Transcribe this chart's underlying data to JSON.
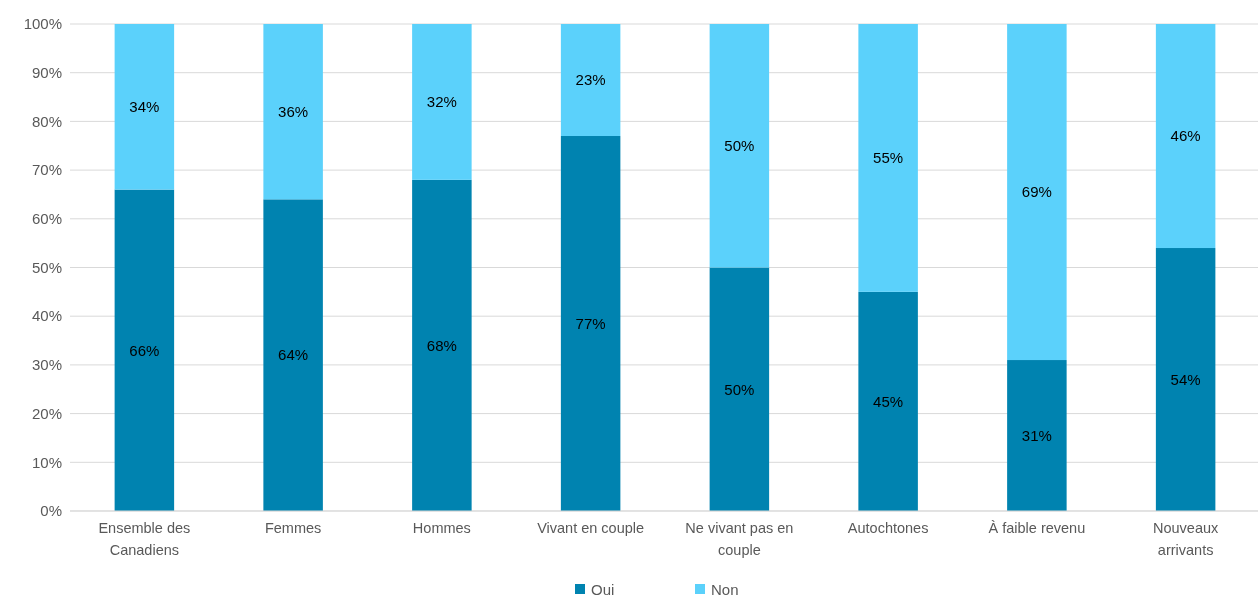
{
  "chart_data": {
    "type": "bar",
    "stacked": true,
    "categories": [
      "Ensemble des Canadiens",
      "Femmes",
      "Hommes",
      "Vivant en couple",
      "Ne vivant pas en couple",
      "Autochtones",
      "À faible revenu",
      "Nouveaux arrivants"
    ],
    "series": [
      {
        "name": "Oui",
        "color": "#0083b0",
        "values": [
          66,
          64,
          68,
          77,
          50,
          45,
          31,
          54
        ],
        "value_labels": [
          "66%",
          "64%",
          "68%",
          "77%",
          "50%",
          "45%",
          "31%",
          "54%"
        ]
      },
      {
        "name": "Non",
        "color": "#5bd1fb",
        "values": [
          34,
          36,
          32,
          23,
          50,
          55,
          69,
          46
        ],
        "value_labels": [
          "34%",
          "36%",
          "32%",
          "23%",
          "50%",
          "55%",
          "69%",
          "46%"
        ]
      }
    ],
    "ylim": [
      0,
      100
    ],
    "yticks": [
      {
        "value": 0,
        "label": "0%"
      },
      {
        "value": 10,
        "label": "10%"
      },
      {
        "value": 20,
        "label": "20%"
      },
      {
        "value": 30,
        "label": "30%"
      },
      {
        "value": 40,
        "label": "40%"
      },
      {
        "value": 50,
        "label": "50%"
      },
      {
        "value": 60,
        "label": "60%"
      },
      {
        "value": 70,
        "label": "70%"
      },
      {
        "value": 80,
        "label": "80%"
      },
      {
        "value": 90,
        "label": "90%"
      },
      {
        "value": 100,
        "label": "100%"
      }
    ],
    "grid": "y",
    "legend": "bottom"
  }
}
